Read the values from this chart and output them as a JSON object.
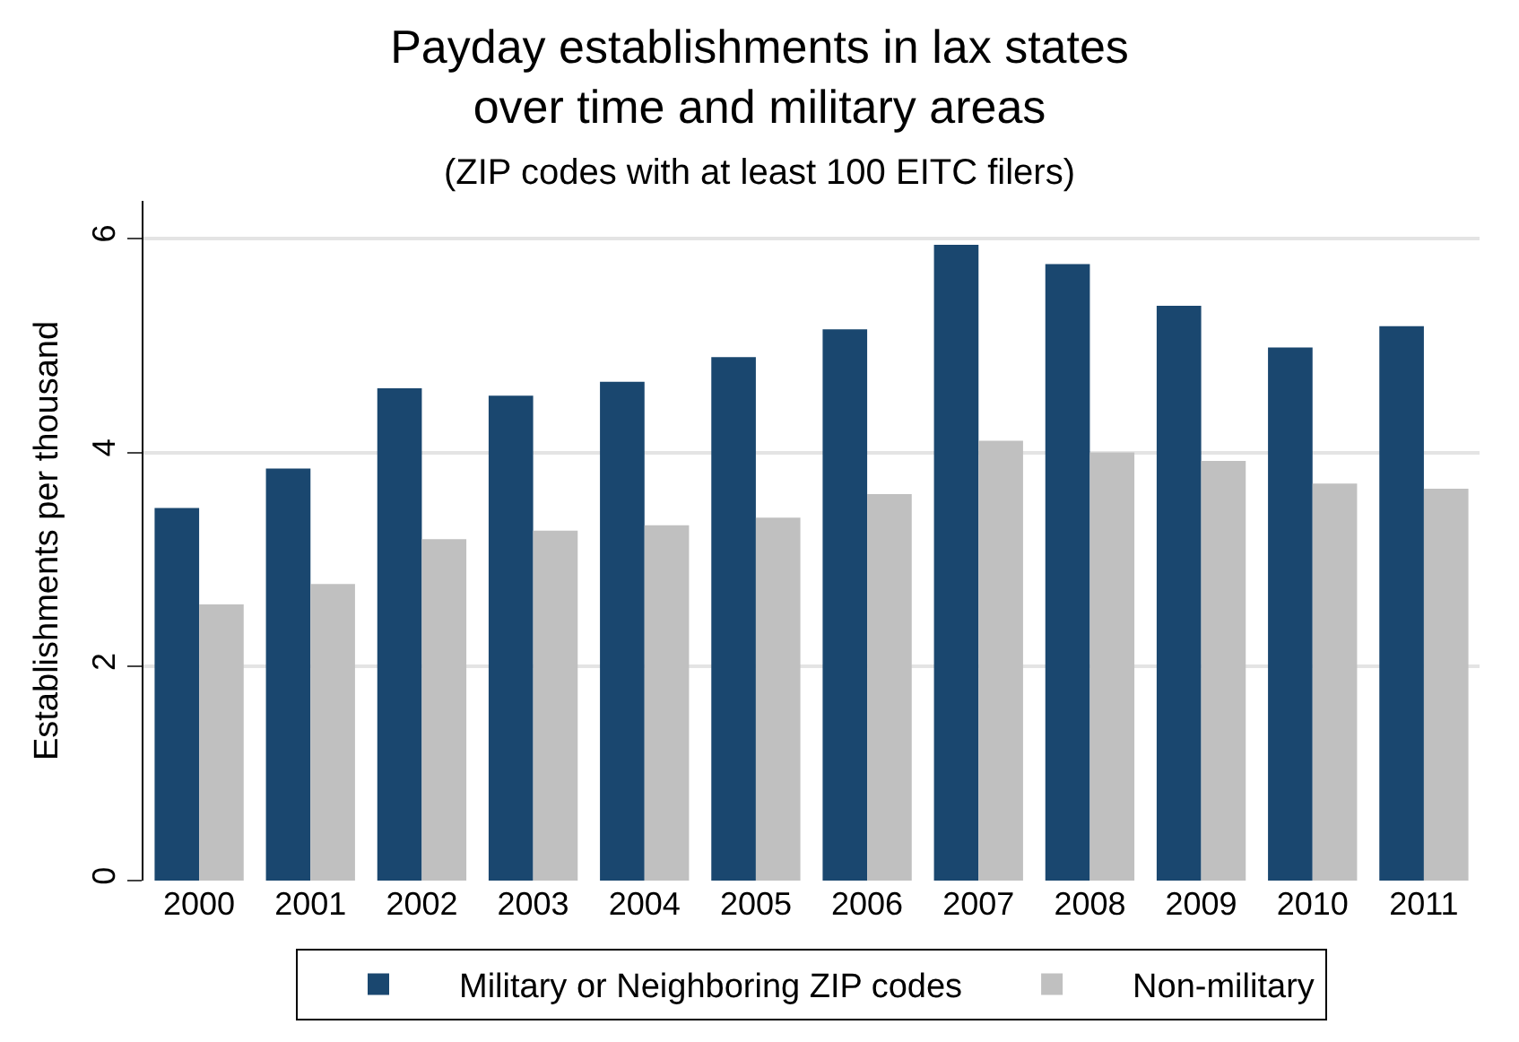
{
  "chart_data": {
    "type": "bar",
    "title": "Payday establishments in lax states\nover time and military areas",
    "subtitle": "(ZIP codes with at least 100 EITC filers)",
    "ylabel": "Establishments per thousand",
    "categories": [
      "2000",
      "2001",
      "2002",
      "2003",
      "2004",
      "2005",
      "2006",
      "2007",
      "2008",
      "2009",
      "2010",
      "2011"
    ],
    "series": [
      {
        "name": "Military or Neighboring ZIP codes",
        "color": "#1a476f",
        "values": [
          3.48,
          3.85,
          4.6,
          4.53,
          4.66,
          4.89,
          5.15,
          5.94,
          5.76,
          5.37,
          4.98,
          5.18
        ]
      },
      {
        "name": "Non-military",
        "color": "#c0c0c0",
        "values": [
          2.58,
          2.77,
          3.19,
          3.27,
          3.32,
          3.39,
          3.61,
          4.11,
          4.0,
          3.92,
          3.71,
          3.66
        ]
      }
    ],
    "ylim": [
      0,
      6.35
    ],
    "yticks": [
      0,
      2,
      4,
      6
    ],
    "grid": "y",
    "legend": "bottom"
  }
}
